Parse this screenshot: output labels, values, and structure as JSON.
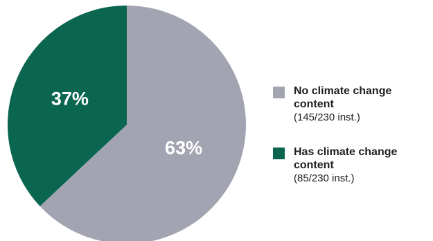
{
  "chart_data": {
    "type": "pie",
    "slices": [
      {
        "name": "No climate change content",
        "value": 63,
        "display_label": "63%",
        "detail": "(145/230 inst.)",
        "color": "#a3a4b1"
      },
      {
        "name": "Has climate change content",
        "value": 37,
        "display_label": "37%",
        "detail": "(85/230 inst.)",
        "color": "#0b6650"
      }
    ],
    "legend_position": "right"
  }
}
